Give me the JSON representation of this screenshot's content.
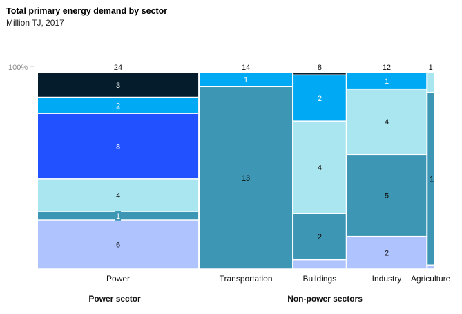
{
  "chart_data": {
    "type": "marimekko",
    "title": "Total primary energy demand by sector",
    "subtitle": "Million TJ, 2017",
    "y_axis_label": "100% =",
    "segment_colors": [
      "#041c2c",
      "#00a9f4",
      "#2251ff",
      "#aae6f0",
      "#3c96b4",
      "#afc3ff"
    ],
    "columns": [
      {
        "name": "Power",
        "total": "24",
        "segments": [
          {
            "label": "3",
            "value": 3
          },
          {
            "label": "2",
            "value": 2
          },
          {
            "label": "8",
            "value": 8
          },
          {
            "label": "4",
            "value": 4
          },
          {
            "label": "1",
            "value": 1
          },
          {
            "label": "6",
            "value": 6
          }
        ]
      },
      {
        "name": "Transportation",
        "total": "14",
        "segments": [
          {
            "label": "",
            "value": 0
          },
          {
            "label": "1",
            "value": 1
          },
          {
            "label": "",
            "value": 0
          },
          {
            "label": "",
            "value": 0
          },
          {
            "label": "13",
            "value": 13
          },
          {
            "label": "",
            "value": 0
          }
        ]
      },
      {
        "name": "Buildings",
        "total": "8",
        "segments": [
          {
            "label": "",
            "value": 0.1
          },
          {
            "label": "2",
            "value": 2
          },
          {
            "label": "",
            "value": 0
          },
          {
            "label": "4",
            "value": 4
          },
          {
            "label": "2",
            "value": 2
          },
          {
            "label": "",
            "value": 0.4
          }
        ]
      },
      {
        "name": "Industry",
        "total": "12",
        "segments": [
          {
            "label": "",
            "value": 0
          },
          {
            "label": "1",
            "value": 1
          },
          {
            "label": "",
            "value": 0
          },
          {
            "label": "4",
            "value": 4
          },
          {
            "label": "5",
            "value": 5
          },
          {
            "label": "2",
            "value": 2
          }
        ]
      },
      {
        "name": "Agriculture",
        "total": "1",
        "segments": [
          {
            "label": "",
            "value": 0
          },
          {
            "label": "",
            "value": 0
          },
          {
            "label": "",
            "value": 0
          },
          {
            "label": "",
            "value": 0.1
          },
          {
            "label": "1",
            "value": 0.87
          },
          {
            "label": "",
            "value": 0.02
          }
        ]
      }
    ],
    "groups": [
      {
        "label": "Power sector",
        "columns": [
          "Power"
        ]
      },
      {
        "label": "Non-power sectors",
        "columns": [
          "Transportation",
          "Buildings",
          "Industry",
          "Agriculture"
        ]
      }
    ]
  }
}
